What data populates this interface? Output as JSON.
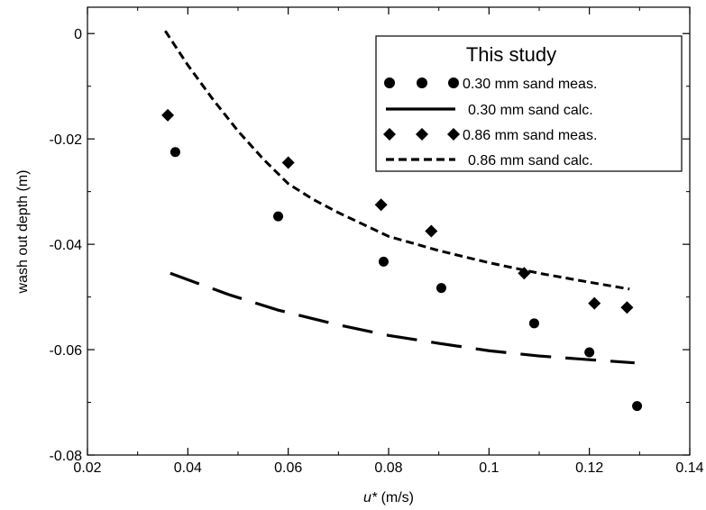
{
  "chart_data": {
    "type": "scatter",
    "title": "",
    "xlabel_symbol": "u*",
    "xlabel_unit": " (m/s)",
    "ylabel": "wash out depth (m)",
    "xlim": [
      0.02,
      0.14
    ],
    "ylim": [
      -0.08,
      0.005
    ],
    "xticks": [
      0.02,
      0.04,
      0.06,
      0.08,
      0.1,
      0.12,
      0.14
    ],
    "xtick_labels": [
      "0.02",
      "0.04",
      "0.06",
      "0.08",
      "0.1",
      "0.12",
      "0.14"
    ],
    "yticks": [
      -0.08,
      -0.06,
      -0.04,
      -0.02,
      0
    ],
    "ytick_labels": [
      "-0.08",
      "-0.06",
      "-0.04",
      "-0.02",
      "0"
    ],
    "grid": false,
    "legend": {
      "title": "This study",
      "position": "top-right"
    },
    "series": [
      {
        "name": "0.30 mm sand meas.",
        "kind": "scatter",
        "marker": "circle",
        "color": "#000000",
        "x": [
          0.0375,
          0.058,
          0.079,
          0.0905,
          0.109,
          0.12,
          0.1295
        ],
        "y": [
          -0.0225,
          -0.0347,
          -0.0433,
          -0.0483,
          -0.055,
          -0.0605,
          -0.0707
        ]
      },
      {
        "name": "0.30 mm sand calc.",
        "kind": "line",
        "dash": "long-dash",
        "color": "#000000",
        "x": [
          0.0365,
          0.048,
          0.058,
          0.07,
          0.08,
          0.09,
          0.1,
          0.11,
          0.12,
          0.129
        ],
        "y": [
          -0.0455,
          -0.0495,
          -0.0525,
          -0.0553,
          -0.0573,
          -0.0588,
          -0.0602,
          -0.0612,
          -0.0619,
          -0.0625
        ]
      },
      {
        "name": "0.86 mm sand meas.",
        "kind": "scatter",
        "marker": "diamond",
        "color": "#000000",
        "x": [
          0.036,
          0.06,
          0.0785,
          0.0885,
          0.107,
          0.121,
          0.1275
        ],
        "y": [
          -0.0155,
          -0.0245,
          -0.0325,
          -0.0375,
          -0.0455,
          -0.0512,
          -0.052
        ]
      },
      {
        "name": "0.86 mm sand calc.",
        "kind": "line",
        "dash": "short-dash",
        "color": "#000000",
        "x": [
          0.0355,
          0.04,
          0.045,
          0.05,
          0.055,
          0.06,
          0.065,
          0.07,
          0.08,
          0.09,
          0.1,
          0.11,
          0.12,
          0.128
        ],
        "y": [
          0.0005,
          -0.006,
          -0.0125,
          -0.0185,
          -0.0238,
          -0.0285,
          -0.0315,
          -0.034,
          -0.0385,
          -0.0412,
          -0.0435,
          -0.0455,
          -0.0472,
          -0.0485
        ]
      }
    ]
  }
}
